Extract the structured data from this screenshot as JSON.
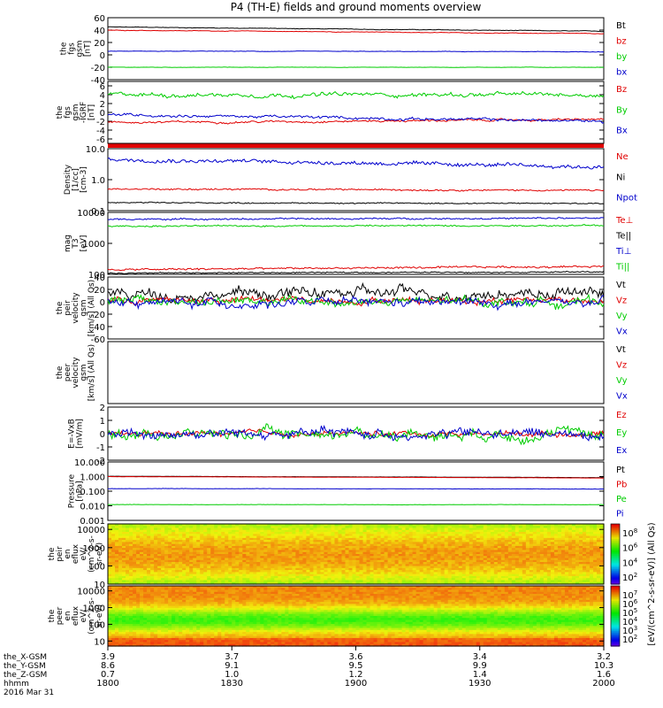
{
  "title": "P4 (TH-E) fields and ground moments overview",
  "colors": {
    "black": "#000000",
    "red": "#e00000",
    "green": "#00cc00",
    "blue": "#0000cc"
  },
  "chart_data": [
    {
      "type": "line",
      "ylabel": [
        "the",
        "fgs",
        "gsm",
        "[nT]"
      ],
      "ylim": [
        -40,
        60
      ],
      "ticks": [
        "60",
        "40",
        "20",
        "0",
        "-20",
        "-40"
      ],
      "tick_values": [
        60,
        40,
        20,
        0,
        -20,
        -40
      ],
      "scale": "linear",
      "series": [
        {
          "name": "Bt",
          "color": "black",
          "start": 45,
          "end": 38,
          "noise": 0.6
        },
        {
          "name": "bz",
          "color": "red",
          "start": 40,
          "end": 34,
          "noise": 0.6
        },
        {
          "name": "by",
          "color": "green",
          "start": -20,
          "end": -20,
          "noise": 0.3
        },
        {
          "name": "bx",
          "color": "blue",
          "start": 6,
          "end": 5,
          "noise": 0.5
        }
      ]
    },
    {
      "type": "line",
      "ylabel": [
        "the",
        "fgs",
        "gsm",
        "-IGRF",
        "[nT]"
      ],
      "ylim": [
        -7,
        7
      ],
      "ticks": [
        "6",
        "4",
        "2",
        "0",
        "-2",
        "-4",
        "-6"
      ],
      "tick_values": [
        6,
        4,
        2,
        0,
        -2,
        -4,
        -6
      ],
      "scale": "linear",
      "series": [
        {
          "name": "Bz",
          "color": "red",
          "start": -2.3,
          "end": -1.6,
          "noise": 0.3
        },
        {
          "name": "By",
          "color": "green",
          "start": 4,
          "end": 4,
          "noise": 0.6
        },
        {
          "name": "Bx",
          "color": "blue",
          "start": -0.5,
          "end": -2.0,
          "noise": 0.4
        }
      ]
    },
    {
      "type": "line",
      "ylabel": [
        "Density",
        "[1/cc]",
        "[cm-3]"
      ],
      "ylim": [
        0.1,
        10
      ],
      "ticks": [
        "10.0",
        "1.0",
        "0.1"
      ],
      "tick_values": [
        10,
        1,
        0.1
      ],
      "scale": "log",
      "series": [
        {
          "name": "Ne",
          "color": "red",
          "start": 0.5,
          "end": 0.45,
          "noise": 0.04
        },
        {
          "name": "Ni",
          "color": "black",
          "start": 0.18,
          "end": 0.17,
          "noise": 0.03
        },
        {
          "name": "Npot",
          "color": "blue",
          "start": 4.5,
          "end": 2.5,
          "noise": 0.1
        }
      ]
    },
    {
      "type": "line",
      "ylabel": [
        "mag",
        "T3",
        "[eV]"
      ],
      "ylim": [
        100,
        10000
      ],
      "ticks": [
        "10000",
        "1000",
        "100"
      ],
      "tick_values": [
        10000,
        1000,
        100
      ],
      "scale": "log",
      "series": [
        {
          "name": "Te⊥",
          "color": "red",
          "start": 140,
          "end": 180,
          "noise": 0.05
        },
        {
          "name": "Te||",
          "color": "black",
          "start": 110,
          "end": 120,
          "noise": 0.03
        },
        {
          "name": "Ti⊥",
          "color": "blue",
          "start": 6000,
          "end": 6500,
          "noise": 0.04
        },
        {
          "name": "Ti||",
          "color": "green",
          "start": 3600,
          "end": 3800,
          "noise": 0.04
        }
      ]
    },
    {
      "type": "line",
      "ylabel": [
        "the",
        "peir",
        "velocity",
        "gsm",
        "[km/s] (All Qs)"
      ],
      "ylim": [
        -60,
        40
      ],
      "ticks": [
        "40",
        "20",
        "0",
        "-20",
        "-40",
        "-60"
      ],
      "tick_values": [
        40,
        20,
        0,
        -20,
        -40,
        -60
      ],
      "scale": "linear",
      "series": [
        {
          "name": "Vt",
          "color": "black",
          "start": 12,
          "end": 15,
          "noise": 12
        },
        {
          "name": "Vz",
          "color": "red",
          "start": 2,
          "end": 4,
          "noise": 7
        },
        {
          "name": "Vy",
          "color": "green",
          "start": 0,
          "end": 0,
          "noise": 9
        },
        {
          "name": "Vx",
          "color": "blue",
          "start": -2,
          "end": -2,
          "noise": 9
        }
      ]
    },
    {
      "type": "line",
      "ylabel": [
        "the",
        "peer",
        "velocity",
        "gsm",
        "[km/s] (All Qs)"
      ],
      "ylim": [
        -1,
        1
      ],
      "ticks": [],
      "tick_values": [],
      "scale": "linear",
      "series": [
        {
          "name": "Vt",
          "color": "black"
        },
        {
          "name": "Vz",
          "color": "red"
        },
        {
          "name": "Vy",
          "color": "green"
        },
        {
          "name": "Vx",
          "color": "blue"
        }
      ]
    },
    {
      "type": "line",
      "ylabel": [
        "E=-VxB",
        "[mV/m]"
      ],
      "ylim": [
        -2,
        2
      ],
      "ticks": [
        "2",
        "1",
        "0",
        "-1",
        "-2"
      ],
      "tick_values": [
        2,
        1,
        0,
        -1,
        -2
      ],
      "scale": "linear",
      "series": [
        {
          "name": "Ez",
          "color": "red",
          "start": 0,
          "end": 0,
          "noise": 0.25
        },
        {
          "name": "Ey",
          "color": "green",
          "start": 0,
          "end": 0,
          "noise": 0.5
        },
        {
          "name": "Ex",
          "color": "blue",
          "start": 0,
          "end": 0,
          "noise": 0.5
        }
      ]
    },
    {
      "type": "line",
      "ylabel": [
        "Pressure",
        "[nPa]"
      ],
      "ylim": [
        0.001,
        10
      ],
      "ticks": [
        "10.000",
        "1.000",
        "0.100",
        "0.010",
        "0.001"
      ],
      "tick_values": [
        10,
        1,
        0.1,
        0.01,
        0.001
      ],
      "scale": "log",
      "series": [
        {
          "name": "Pt",
          "color": "black",
          "start": 1.05,
          "end": 0.85,
          "noise": 0.01
        },
        {
          "name": "Pb",
          "color": "red",
          "start": 1.0,
          "end": 0.8,
          "noise": 0.01
        },
        {
          "name": "Pe",
          "color": "green",
          "start": 0.012,
          "end": 0.012,
          "noise": 0.02
        },
        {
          "name": "Pi",
          "color": "blue",
          "start": 0.15,
          "end": 0.14,
          "noise": 0.02
        }
      ]
    },
    {
      "type": "heatmap",
      "ylabel": [
        "the",
        "peir",
        "en",
        "eflux",
        "eV/",
        "(cm^2-s-",
        "sr-eV)"
      ],
      "ylim": [
        10,
        20000
      ],
      "ticks": [
        "10000",
        "1000",
        "100",
        "10"
      ],
      "tick_values": [
        10000,
        1000,
        100,
        10
      ],
      "scale": "log",
      "colorbar": {
        "label": "[eV/(cm^2-s-sr-eV)] (All Qs)",
        "ticks": [
          "10^8",
          "10^6",
          "10^4",
          "10^2"
        ]
      }
    },
    {
      "type": "heatmap",
      "ylabel": [
        "the",
        "peer",
        "en",
        "eflux",
        "eV/",
        "(cm^2-s-",
        "sr-eV)"
      ],
      "ylim": [
        5,
        20000
      ],
      "ticks": [
        "10000",
        "1000",
        "100",
        "10"
      ],
      "tick_values": [
        10000,
        1000,
        100,
        10
      ],
      "scale": "log",
      "colorbar": {
        "label": "[eV/(cm^2-s-sr-eV)] (All Qs)",
        "ticks": [
          "10^7",
          "10^6",
          "10^5",
          "10^4",
          "10^3",
          "10^2"
        ]
      }
    }
  ],
  "xaxis": {
    "rows": [
      {
        "label": "the_X-GSM",
        "values": [
          "3.9",
          "3.7",
          "3.6",
          "3.4",
          "3.2"
        ]
      },
      {
        "label": "the_Y-GSM",
        "values": [
          "8.6",
          "9.1",
          "9.5",
          "9.9",
          "10.3"
        ]
      },
      {
        "label": "the_Z-GSM",
        "values": [
          "0.7",
          "1.0",
          "1.2",
          "1.4",
          "1.6"
        ]
      },
      {
        "label": "hhmm",
        "values": [
          "1800",
          "1830",
          "1900",
          "1930",
          "2000"
        ]
      }
    ],
    "date": "2016 Mar 31"
  }
}
